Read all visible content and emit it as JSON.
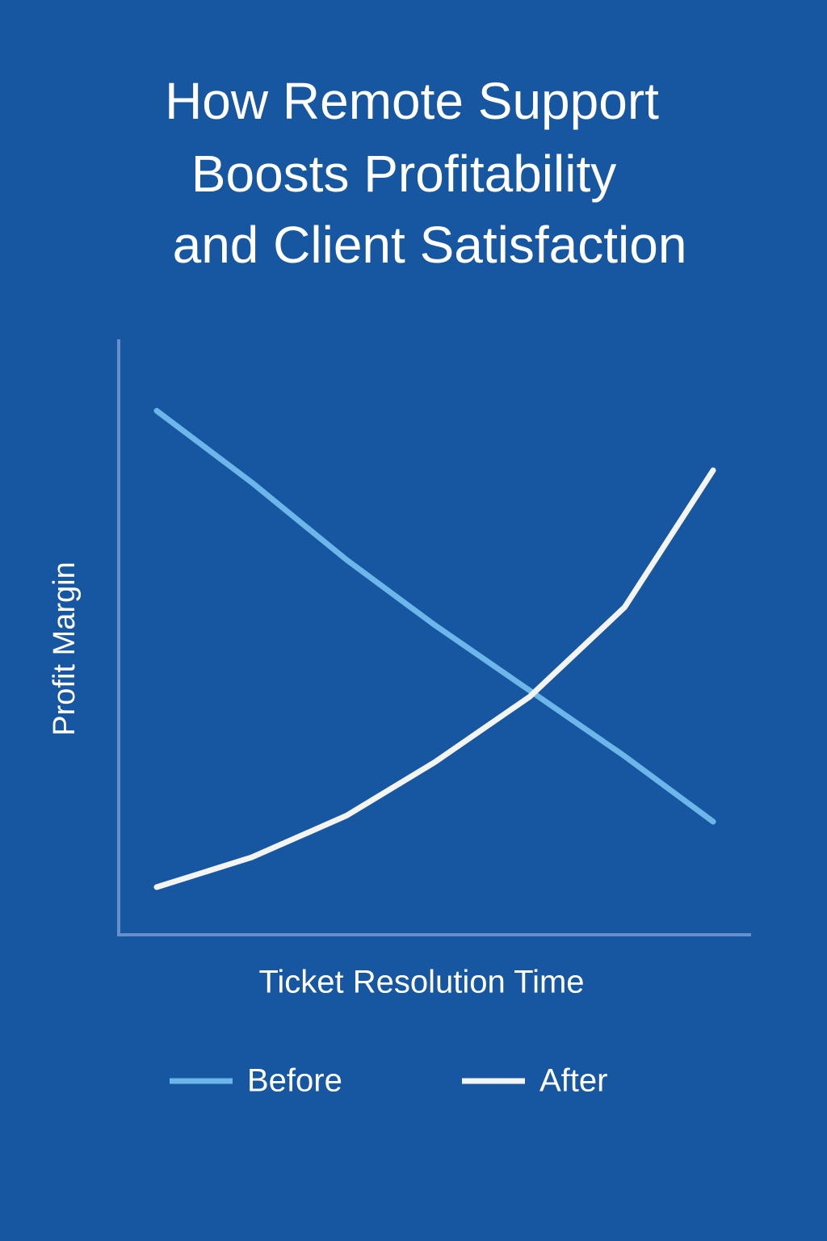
{
  "chart_data": {
    "type": "line",
    "title": [
      "How Remote Support",
      "Boosts Profitability",
      "and Client Satisfaction"
    ],
    "x_label": "Ticket Resolution Time",
    "y_label": "Profit Margin",
    "x": [
      6,
      21,
      36,
      50,
      65,
      80,
      94
    ],
    "xlim": [
      0,
      100
    ],
    "ylim": [
      0,
      100
    ],
    "series": [
      {
        "name": "Before",
        "color": "#6cb6ea",
        "values": [
          88,
          76,
          63,
          52,
          41,
          30,
          19
        ]
      },
      {
        "name": "After",
        "color": "#f4f4f2",
        "values": [
          8,
          13,
          20,
          29,
          40,
          55,
          78
        ]
      }
    ],
    "grid": false,
    "legend": "bottom"
  }
}
